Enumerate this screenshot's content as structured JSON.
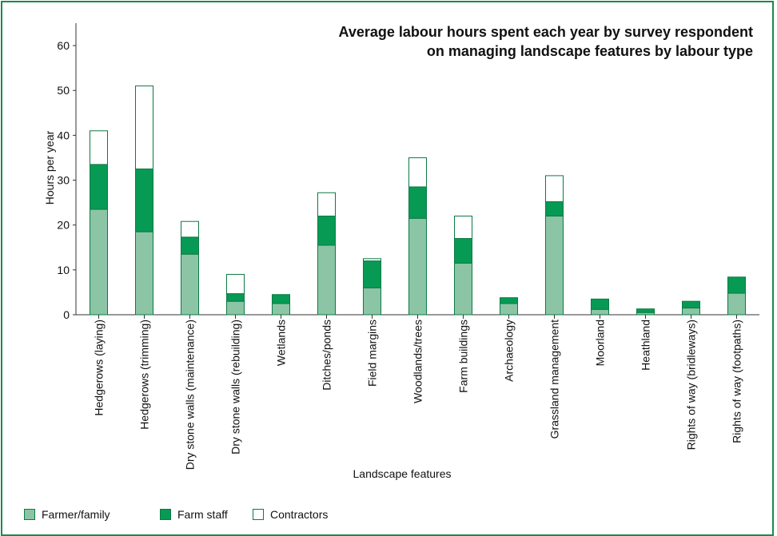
{
  "chart_data": {
    "type": "bar",
    "stacked": true,
    "title_line1": "Average labour hours spent each year by survey respondent",
    "title_line2": "on managing landscape features by labour type",
    "xlabel": "Landscape features",
    "ylabel": "Hours per year",
    "ylim": [
      0,
      65
    ],
    "yticks": [
      0,
      10,
      20,
      30,
      40,
      50,
      60
    ],
    "grid": false,
    "legend_position": "bottom-left",
    "categories": [
      "Hedgerows (laying)",
      "Hedgerows (trimming)",
      "Dry stone walls (maintenance)",
      "Dry stone walls (rebuilding)",
      "Wetlands",
      "Ditches/ponds",
      "Field margins",
      "Woodlands/trees",
      "Farm buildings",
      "Archaeology",
      "Grassland management",
      "Moorland",
      "Heathland",
      "Rights of way (bridleways)",
      "Rights of way (footpaths)"
    ],
    "series": [
      {
        "name": "Farmer/family",
        "color": "#8cc5a5",
        "values": [
          23.5,
          18.5,
          13.5,
          3.0,
          2.5,
          15.5,
          6.0,
          21.5,
          11.5,
          2.5,
          22.0,
          1.2,
          0.5,
          1.5,
          4.8
        ]
      },
      {
        "name": "Farm staff",
        "color": "#079a55",
        "values": [
          10.0,
          14.0,
          3.8,
          1.7,
          2.0,
          6.5,
          6.0,
          7.0,
          5.5,
          1.3,
          3.2,
          2.3,
          0.8,
          1.5,
          3.6
        ]
      },
      {
        "name": "Contractors",
        "color": "#ffffff",
        "values": [
          7.5,
          18.5,
          3.5,
          4.3,
          0.0,
          5.2,
          0.5,
          6.5,
          5.0,
          0.0,
          5.8,
          0.0,
          0.0,
          0.0,
          0.0
        ]
      }
    ]
  }
}
